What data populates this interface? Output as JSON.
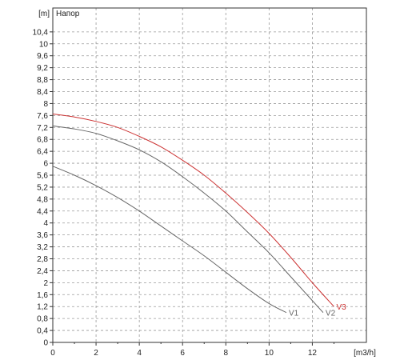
{
  "chart_data": {
    "type": "line",
    "title": "Напор",
    "ylabel": "[m]",
    "xlabel": "[m3/h]",
    "xlim": [
      0,
      14.5
    ],
    "ylim": [
      0,
      11.2
    ],
    "x_ticks": [
      "0",
      "2",
      "4",
      "6",
      "8",
      "10",
      "12"
    ],
    "x_tick_values": [
      0,
      2,
      4,
      6,
      8,
      10,
      12
    ],
    "y_ticks": [
      "0",
      "0,4",
      "0,8",
      "1,2",
      "1,6",
      "2",
      "2,4",
      "2,8",
      "3,2",
      "3,6",
      "4",
      "4,4",
      "4,8",
      "5,2",
      "5,6",
      "6",
      "6,4",
      "6,8",
      "7,2",
      "7,6",
      "8",
      "8,4",
      "8,8",
      "9,2",
      "9,6",
      "10",
      "10,4"
    ],
    "y_tick_values": [
      0,
      0.4,
      0.8,
      1.2,
      1.6,
      2,
      2.4,
      2.8,
      3.2,
      3.6,
      4,
      4.4,
      4.8,
      5.2,
      5.6,
      6,
      6.4,
      6.8,
      7.2,
      7.6,
      8,
      8.4,
      8.8,
      9.2,
      9.6,
      10,
      10.4
    ],
    "grid": true,
    "series": [
      {
        "name": "V1",
        "color": "#666666",
        "x": [
          0,
          1,
          2,
          3,
          4,
          5,
          6,
          7,
          8,
          9,
          10,
          10.8
        ],
        "y": [
          5.9,
          5.6,
          5.25,
          4.85,
          4.4,
          3.9,
          3.4,
          2.9,
          2.35,
          1.8,
          1.3,
          1.0
        ]
      },
      {
        "name": "V2",
        "color": "#666666",
        "x": [
          0,
          1,
          2,
          3,
          4,
          5,
          6,
          7,
          8,
          9,
          10,
          11,
          12,
          12.5
        ],
        "y": [
          7.25,
          7.15,
          7.0,
          6.75,
          6.45,
          6.05,
          5.55,
          5.0,
          4.4,
          3.7,
          3.0,
          2.2,
          1.4,
          1.0
        ]
      },
      {
        "name": "V3",
        "color": "#cc3333",
        "x": [
          0,
          1,
          2,
          3,
          4,
          5,
          6,
          7,
          8,
          9,
          10,
          11,
          12,
          13
        ],
        "y": [
          7.65,
          7.55,
          7.4,
          7.2,
          6.9,
          6.55,
          6.1,
          5.6,
          5.0,
          4.35,
          3.65,
          2.85,
          2.0,
          1.2
        ]
      }
    ]
  }
}
